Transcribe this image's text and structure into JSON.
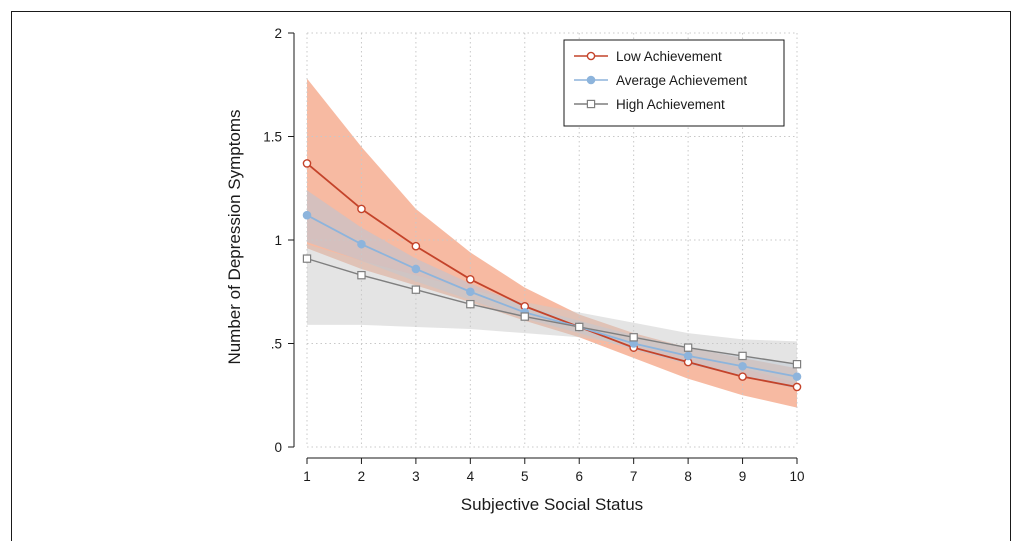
{
  "chart_data": {
    "type": "line",
    "xlabel": "Subjective Social Status",
    "ylabel": "Number of Depression Symptoms",
    "x": [
      1,
      2,
      3,
      4,
      5,
      6,
      7,
      8,
      9,
      10
    ],
    "xlim": [
      1,
      10
    ],
    "ylim": [
      0,
      2
    ],
    "x_ticks": [
      "1",
      "2",
      "3",
      "4",
      "5",
      "6",
      "7",
      "8",
      "9",
      "10"
    ],
    "y_ticks": [
      {
        "value": 0,
        "label": "0"
      },
      {
        "value": 0.5,
        "label": ".5"
      },
      {
        "value": 1,
        "label": "1"
      },
      {
        "value": 1.5,
        "label": "1.5"
      },
      {
        "value": 2,
        "label": "2"
      }
    ],
    "grid": true,
    "legend_position": "top-right",
    "series": [
      {
        "name": "Low Achievement",
        "marker": "circle-open",
        "color": "#c4432a",
        "band_color": "#f4a07e",
        "values": [
          1.37,
          1.15,
          0.97,
          0.81,
          0.68,
          0.58,
          0.48,
          0.41,
          0.34,
          0.29
        ],
        "ci_lower": [
          0.96,
          0.86,
          0.78,
          0.7,
          0.61,
          0.53,
          0.43,
          0.33,
          0.25,
          0.19
        ],
        "ci_upper": [
          1.78,
          1.45,
          1.15,
          0.94,
          0.77,
          0.64,
          0.55,
          0.48,
          0.43,
          0.38
        ]
      },
      {
        "name": "Average Achievement",
        "marker": "circle-filled",
        "color": "#8db4dc",
        "band_color": "#b3c6da",
        "values": [
          1.12,
          0.98,
          0.86,
          0.75,
          0.65,
          0.58,
          0.5,
          0.44,
          0.39,
          0.34
        ],
        "ci_lower": [
          0.99,
          0.9,
          0.8,
          0.71,
          0.62,
          0.55,
          0.47,
          0.4,
          0.34,
          0.28
        ],
        "ci_upper": [
          1.24,
          1.06,
          0.91,
          0.79,
          0.68,
          0.61,
          0.54,
          0.48,
          0.44,
          0.4
        ]
      },
      {
        "name": "High Achievement",
        "marker": "square-open",
        "color": "#7f7f7f",
        "band_color": "#c9c9c9",
        "values": [
          0.91,
          0.83,
          0.76,
          0.69,
          0.63,
          0.58,
          0.53,
          0.48,
          0.44,
          0.4
        ],
        "ci_lower": [
          0.59,
          0.59,
          0.58,
          0.57,
          0.55,
          0.53,
          0.49,
          0.44,
          0.38,
          0.31
        ],
        "ci_upper": [
          0.98,
          0.9,
          0.83,
          0.76,
          0.7,
          0.65,
          0.6,
          0.55,
          0.52,
          0.51
        ]
      }
    ]
  }
}
